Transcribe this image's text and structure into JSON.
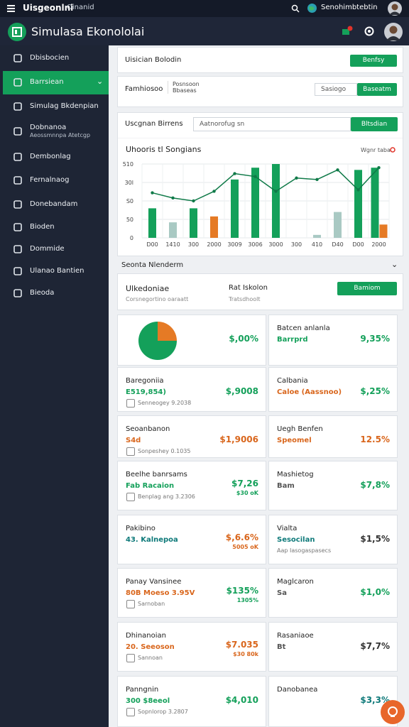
{
  "topbar": {
    "title": "Uisgeonlni",
    "subtitle": "Oinanid",
    "user": "Senohimbtebtin"
  },
  "header": {
    "title": "Simulasa Ekonololai"
  },
  "sidebar": {
    "active": 1,
    "items": [
      {
        "label": "Dbisbocien"
      },
      {
        "label": "Barrsiean"
      },
      {
        "label": "Simulag Bkdenpian"
      },
      {
        "label": "Dobnanoa",
        "sub": "Aeossmnnpa Atetcgp"
      },
      {
        "label": "Dembonlag"
      },
      {
        "label": "Fernalnaog"
      },
      {
        "label": "Donebandam"
      },
      {
        "label": "Bioden"
      },
      {
        "label": "Dommide"
      },
      {
        "label": "Ulanao Bantien"
      },
      {
        "label": "Bieoda"
      }
    ]
  },
  "panel1": {
    "title": "Uisician Bolodin",
    "button": "Benfsy"
  },
  "panel2": {
    "label": "Famhiosoo",
    "tab": "Posnsoon Bbaseas",
    "input": "Sasiogo",
    "button": "Baseatm"
  },
  "panel3": {
    "label": "Uscgnan Birrens",
    "input": "Aatnorofug sn",
    "button": "Bltsdian"
  },
  "chart_data": {
    "type": "bar",
    "title": "Uhooris tl Songians",
    "legend_label": "Wgnr taba",
    "categories": [
      "D00",
      "1410",
      "300",
      "2000",
      "3009",
      "3006",
      "3000",
      "300",
      "410",
      "D40",
      "D00",
      "2000"
    ],
    "series": [
      {
        "type": "bar",
        "color": "#14a05a",
        "values": [
          80,
          null,
          80,
          null,
          158,
          190,
          200,
          null,
          null,
          null,
          184,
          190
        ]
      },
      {
        "type": "bar",
        "color": "#a9c9c3",
        "values": [
          null,
          42,
          null,
          null,
          null,
          null,
          null,
          null,
          8,
          70,
          null,
          null
        ]
      },
      {
        "type": "bar",
        "color": "#e57a25",
        "values": [
          null,
          null,
          null,
          58,
          null,
          null,
          null,
          null,
          null,
          null,
          null,
          36
        ]
      },
      {
        "type": "line",
        "color": "#0f7a48",
        "values": [
          122,
          108,
          100,
          126,
          174,
          166,
          126,
          162,
          158,
          184,
          130,
          190
        ]
      }
    ],
    "ylim": [
      0,
      200
    ],
    "yticks": [
      0,
      50,
      {
        "value": 100,
        "label": "S0"
      },
      {
        "value": 150,
        "label": "30l"
      },
      {
        "value": 200,
        "label": "510"
      }
    ],
    "grid": true
  },
  "section": {
    "title": "Seonta Nlenderm"
  },
  "summary": {
    "title": "Ulkedoniae",
    "subtitle": "Corsnegortino oaraatt",
    "label": "Rat Iskolon",
    "sublabel": "Tratsdhoolt",
    "button": "Bamiom"
  },
  "cards": {
    "left": [
      {
        "pie": {
          "values": [
            75,
            25
          ],
          "colors": [
            "#14a05a",
            "#e57a25"
          ]
        },
        "value": "$,00%",
        "color": "#14a05a"
      },
      {
        "title": "Baregoniia",
        "subtitle": "E519,854)",
        "note": "Senneogey 9.2038",
        "value": "$,9008",
        "color": "#14a05a",
        "subcolor": "#14a05a"
      },
      {
        "title": "Seoanbanon",
        "subtitle": "S4d",
        "note": "Sonpeshey 0.1035",
        "value": "$1,9006",
        "color": "#d9661c",
        "subcolor": "#d9661c"
      },
      {
        "title": "Beelhe banrsams",
        "subtitle": "Fab Racaion",
        "note": "Benplag ang 3.2306",
        "value": "$7,26",
        "value_sub": "$30 oK",
        "color": "#14a05a",
        "subcolor": "#14a05a"
      },
      {
        "title": "Pakibino",
        "subtitle": "43. Kalnepoa",
        "value": "$,6.6%",
        "value_sub": "5005 oK",
        "color": "#d9661c",
        "subcolor": "#0f7a7a"
      },
      {
        "title": "Panay Vansinee",
        "subtitle": "80B Moeso 3.95V",
        "note": "Sarnoban",
        "value": "$135%",
        "value_sub": "1305%",
        "color": "#14a05a",
        "subcolor": "#d9661c"
      },
      {
        "title": "Dhinanoian",
        "subtitle": "20. Seeoson",
        "note": "Sannoan",
        "value": "$7.035",
        "value_sub": "$30 80k",
        "color": "#d9661c",
        "subcolor": "#d9661c"
      },
      {
        "title": "Panngnin",
        "subtitle": "300 $8eeol",
        "note": "Sopnlorop 3.2807",
        "value": "$4,010",
        "color": "#14a05a",
        "subcolor": "#14a05a"
      }
    ],
    "right": [
      {
        "title": "Batcen anlanla",
        "subtitle": "Barrprd",
        "value": "9,35%",
        "color": "#14a05a",
        "subcolor": "#14a05a"
      },
      {
        "title": "Calbania",
        "subtitle": "Caloe (Aassnoo)",
        "value": "$,25%",
        "color": "#14a05a",
        "subcolor": "#d9661c"
      },
      {
        "title": "Uegh Benfen",
        "subtitle": "Speomel",
        "value": "12.5%",
        "color": "#d9661c",
        "subcolor": "#d9661c"
      },
      {
        "title": "Mashietog",
        "subtitle": "Bam",
        "value": "$7,8%",
        "color": "#14a05a",
        "subcolor": "#555"
      },
      {
        "title": "Vialta",
        "subtitle": "Sesocilan",
        "note": "Aap Iasogaspasecs",
        "value": "$1,5%",
        "color": "#333",
        "subcolor": "#0f7a7a"
      },
      {
        "title": "Maglcaron",
        "subtitle": "Sa",
        "value": "$1,0%",
        "color": "#14a05a",
        "subcolor": "#555"
      },
      {
        "title": "Rasaniaoe",
        "subtitle": "Bt",
        "value": "$7,7%",
        "color": "#333",
        "subcolor": "#555"
      },
      {
        "title": "Danobanea",
        "value": "$3,3%",
        "color": "#0f7a7a"
      }
    ]
  }
}
